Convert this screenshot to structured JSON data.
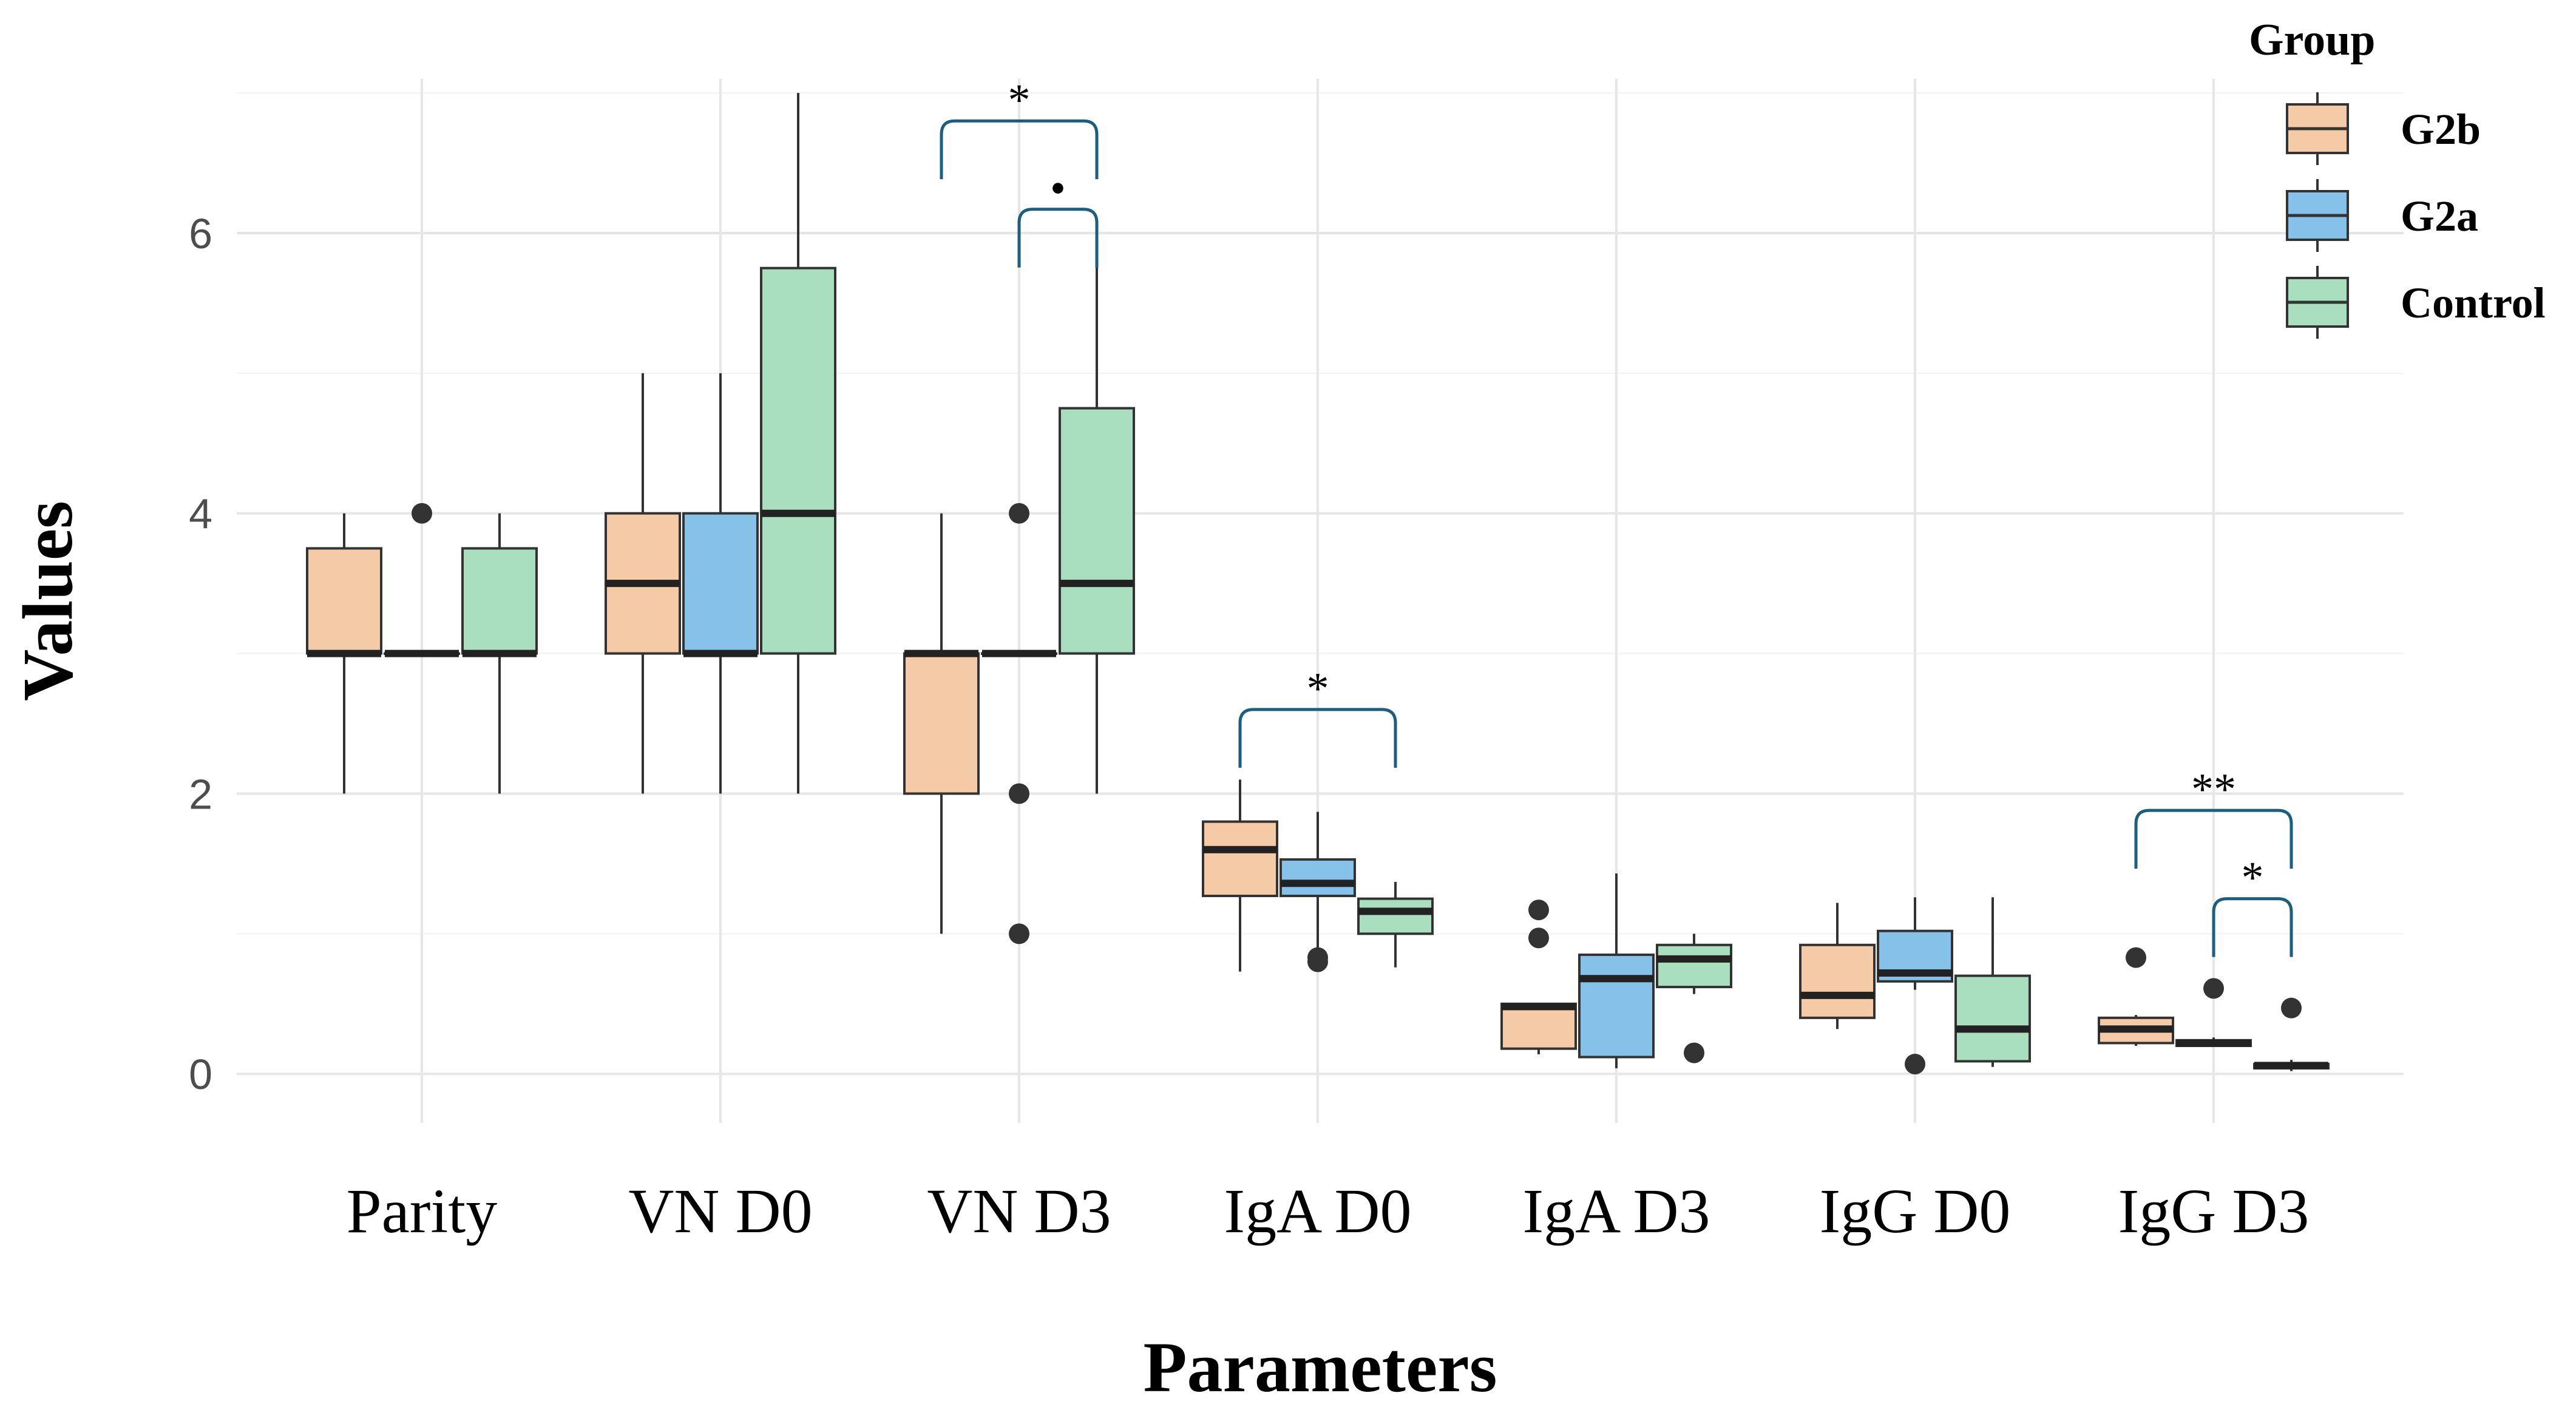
{
  "chart_data": {
    "type": "boxplot",
    "xlabel": "Parameters",
    "ylabel": "Values",
    "ylim": [
      -0.35,
      7.1
    ],
    "yticks": [
      0,
      2,
      4,
      6
    ],
    "ytick_labels": [
      "0",
      "2",
      "4",
      "6"
    ],
    "grid": true,
    "categories": [
      "Parity",
      "VN D0",
      "VN D3",
      "IgA D0",
      "IgA D3",
      "IgG D0",
      "IgG D3"
    ],
    "legend": {
      "title": "Group",
      "position": "top-right",
      "entries": [
        {
          "name": "G2b",
          "color": "#F5CBA7"
        },
        {
          "name": "G2a",
          "color": "#85C1E9"
        },
        {
          "name": "Control",
          "color": "#A9DFBF"
        }
      ]
    },
    "series": [
      {
        "name": "G2b",
        "color": "#F5CBA7",
        "boxes": [
          {
            "category": "Parity",
            "min": 2,
            "q1": 3,
            "median": 3,
            "q3": 3.75,
            "max": 4,
            "outliers": []
          },
          {
            "category": "VN D0",
            "min": 2,
            "q1": 3,
            "median": 3.5,
            "q3": 4,
            "max": 5,
            "outliers": []
          },
          {
            "category": "VN D3",
            "min": 1,
            "q1": 2,
            "median": 3,
            "q3": 3,
            "max": 4,
            "outliers": []
          },
          {
            "category": "IgA D0",
            "min": 0.73,
            "q1": 1.27,
            "median": 1.6,
            "q3": 1.8,
            "max": 2.1,
            "outliers": []
          },
          {
            "category": "IgA D3",
            "min": 0.14,
            "q1": 0.18,
            "median": 0.48,
            "q3": 0.5,
            "max": 0.5,
            "outliers": [
              0.97,
              1.17
            ]
          },
          {
            "category": "IgG D0",
            "min": 0.32,
            "q1": 0.4,
            "median": 0.56,
            "q3": 0.92,
            "max": 1.22,
            "outliers": []
          },
          {
            "category": "IgG D3",
            "min": 0.2,
            "q1": 0.22,
            "median": 0.32,
            "q3": 0.4,
            "max": 0.42,
            "outliers": [
              0.83
            ]
          }
        ]
      },
      {
        "name": "G2a",
        "color": "#85C1E9",
        "boxes": [
          {
            "category": "Parity",
            "min": 3,
            "q1": 3,
            "median": 3,
            "q3": 3,
            "max": 3,
            "outliers": [
              4
            ]
          },
          {
            "category": "VN D0",
            "min": 2,
            "q1": 3,
            "median": 3,
            "q3": 4,
            "max": 5,
            "outliers": []
          },
          {
            "category": "VN D3",
            "min": 3,
            "q1": 3,
            "median": 3,
            "q3": 3,
            "max": 3,
            "outliers": [
              1,
              2,
              4
            ]
          },
          {
            "category": "IgA D0",
            "min": 0.85,
            "q1": 1.27,
            "median": 1.36,
            "q3": 1.53,
            "max": 1.87,
            "outliers": [
              0.8,
              0.83
            ]
          },
          {
            "category": "IgA D3",
            "min": 0.04,
            "q1": 0.12,
            "median": 0.68,
            "q3": 0.85,
            "max": 1.43,
            "outliers": []
          },
          {
            "category": "IgG D0",
            "min": 0.6,
            "q1": 0.66,
            "median": 0.72,
            "q3": 1.02,
            "max": 1.26,
            "outliers": [
              0.07
            ]
          },
          {
            "category": "IgG D3",
            "min": 0.2,
            "q1": 0.2,
            "median": 0.22,
            "q3": 0.24,
            "max": 0.26,
            "outliers": [
              0.61
            ]
          }
        ]
      },
      {
        "name": "Control",
        "color": "#A9DFBF",
        "boxes": [
          {
            "category": "Parity",
            "min": 2,
            "q1": 3,
            "median": 3,
            "q3": 3.75,
            "max": 4,
            "outliers": []
          },
          {
            "category": "VN D0",
            "min": 2,
            "q1": 3,
            "median": 4,
            "q3": 5.75,
            "max": 7,
            "outliers": []
          },
          {
            "category": "VN D3",
            "min": 2,
            "q1": 3,
            "median": 3.5,
            "q3": 4.75,
            "max": 6,
            "outliers": []
          },
          {
            "category": "IgA D0",
            "min": 0.76,
            "q1": 1.0,
            "median": 1.16,
            "q3": 1.25,
            "max": 1.37,
            "outliers": []
          },
          {
            "category": "IgA D3",
            "min": 0.57,
            "q1": 0.62,
            "median": 0.82,
            "q3": 0.92,
            "max": 1.0,
            "outliers": [
              0.15
            ]
          },
          {
            "category": "IgG D0",
            "min": 0.05,
            "q1": 0.09,
            "median": 0.32,
            "q3": 0.7,
            "max": 1.26,
            "outliers": []
          },
          {
            "category": "IgG D3",
            "min": 0.02,
            "q1": 0.04,
            "median": 0.06,
            "q3": 0.07,
            "max": 0.1,
            "outliers": [
              0.47
            ]
          }
        ]
      }
    ],
    "significance": [
      {
        "category": "VN D3",
        "from": "G2b",
        "to": "Control",
        "label": "*",
        "level": 6.8
      },
      {
        "category": "VN D3",
        "from": "G2a",
        "to": "Control",
        "label": "•",
        "level": 6.17
      },
      {
        "category": "IgA D0",
        "from": "G2b",
        "to": "Control",
        "label": "*",
        "level": 2.6
      },
      {
        "category": "IgG D3",
        "from": "G2b",
        "to": "Control",
        "label": "**",
        "level": 1.88
      },
      {
        "category": "IgG D3",
        "from": "G2a",
        "to": "Control",
        "label": "*",
        "level": 1.25
      }
    ],
    "bracket_color": "#1A5E80"
  }
}
